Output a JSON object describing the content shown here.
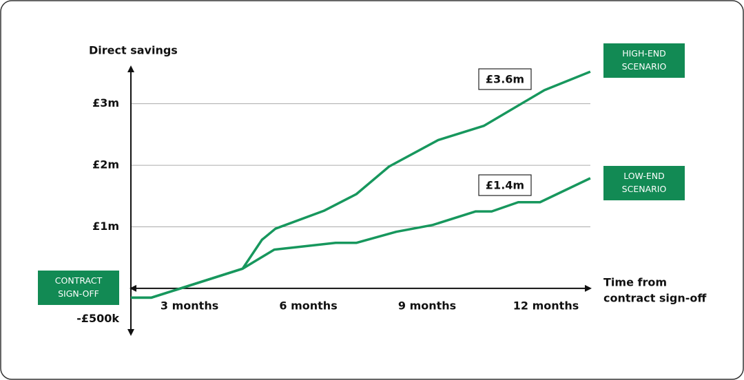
{
  "chart_data": {
    "type": "line",
    "y_label": "Direct savings",
    "x_label": [
      "Time from",
      "contract sign-off"
    ],
    "xlim": [
      1.52,
      13.2
    ],
    "ylim": [
      -0.75,
      3.6
    ],
    "xticks": [
      {
        "value": 3,
        "label": "3 months"
      },
      {
        "value": 6,
        "label": "6 months"
      },
      {
        "value": 9,
        "label": "9 months"
      },
      {
        "value": 12,
        "label": "12 months"
      }
    ],
    "yticks": [
      {
        "value": -0.5,
        "label": "-£500k"
      },
      {
        "value": 1,
        "label": "£1m"
      },
      {
        "value": 2,
        "label": "£2m"
      },
      {
        "value": 3,
        "label": "£3m"
      }
    ],
    "grid": true,
    "series": [
      {
        "name": [
          "HIGH-END",
          "SCENARIO"
        ],
        "color": "#17975d",
        "x": [
          1.52,
          2.04,
          4.34,
          4.83,
          5.17,
          6.39,
          7.21,
          8.04,
          9.28,
          10.43,
          11.96,
          13.12
        ],
        "values": [
          -0.15,
          -0.15,
          0.32,
          0.79,
          0.97,
          1.26,
          1.53,
          1.98,
          2.41,
          2.64,
          3.22,
          3.52
        ]
      },
      {
        "name": [
          "LOW-END",
          "SCENARIO"
        ],
        "color": "#17975d",
        "x": [
          1.52,
          2.04,
          4.34,
          5.14,
          6.69,
          7.21,
          8.22,
          9.14,
          10.22,
          10.63,
          11.3,
          11.85,
          13.12
        ],
        "values": [
          -0.15,
          -0.15,
          0.32,
          0.63,
          0.74,
          0.74,
          0.92,
          1.03,
          1.25,
          1.25,
          1.4,
          1.4,
          1.79
        ]
      }
    ],
    "annotations": [
      "£3.6m",
      "£1.4m"
    ],
    "start_label": [
      "CONTRACT",
      "SIGN-OFF"
    ],
    "box_color": "#128a54"
  }
}
